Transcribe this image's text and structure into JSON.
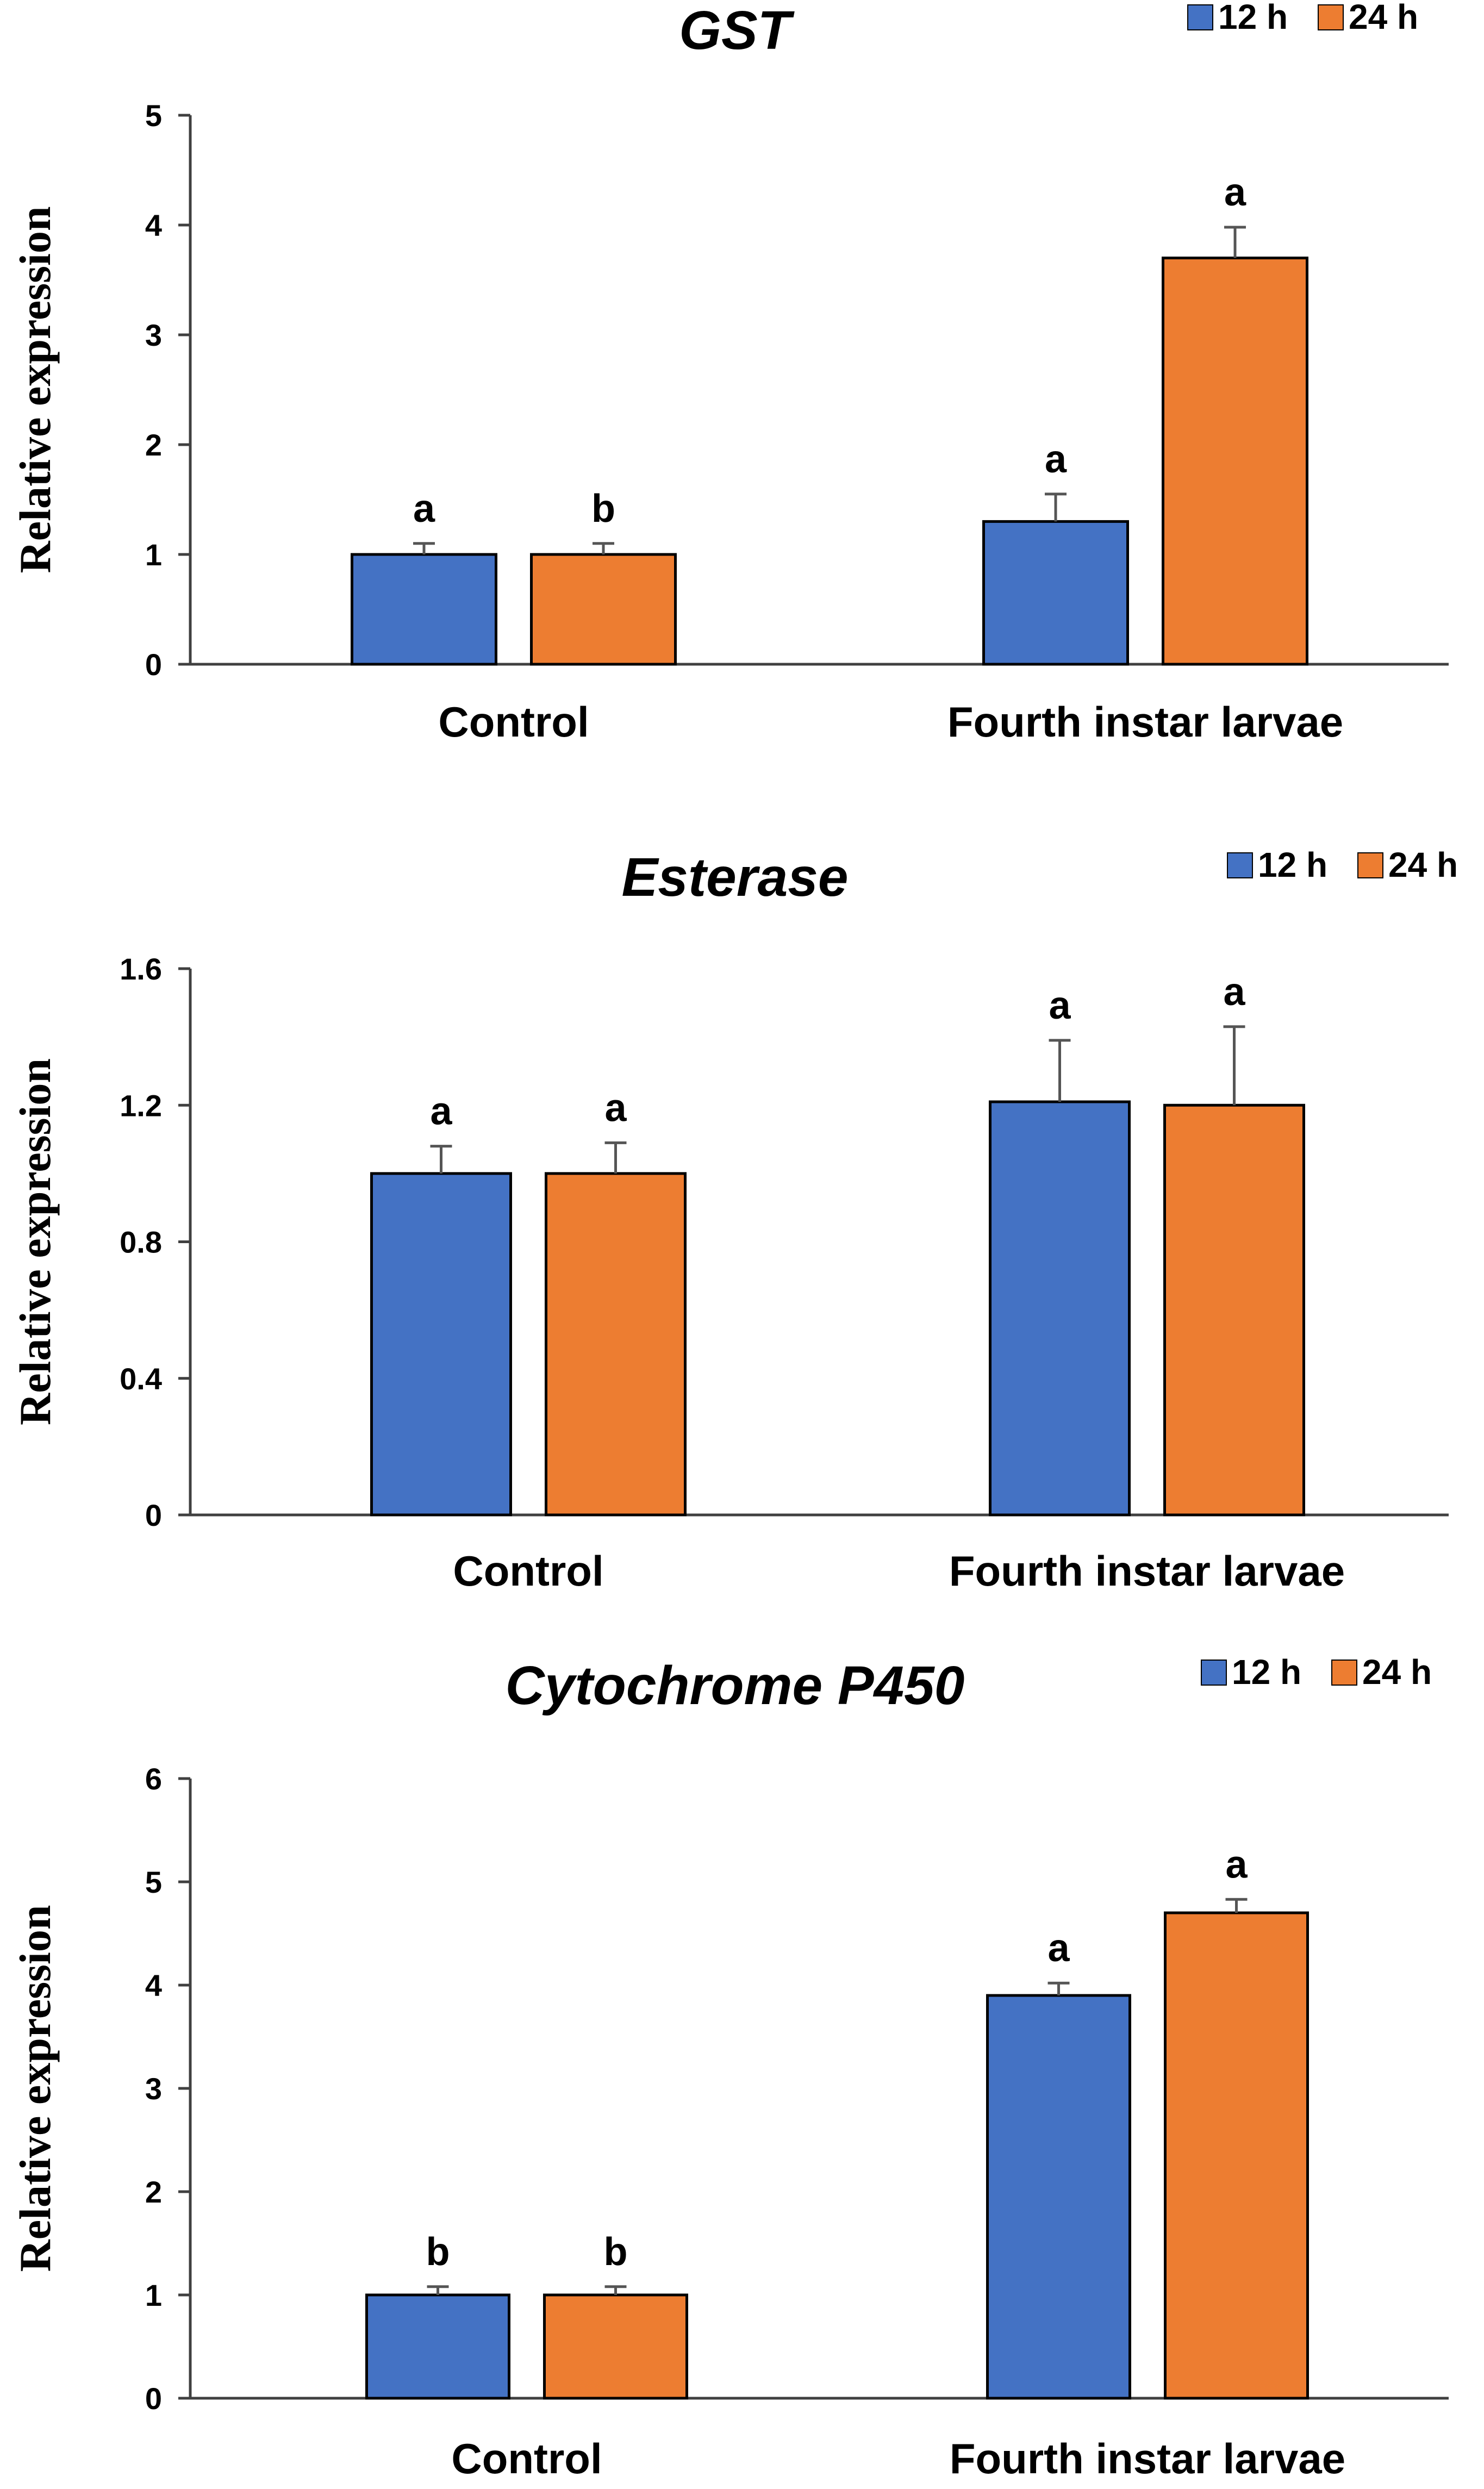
{
  "colors": {
    "series_12h": "#4472c4",
    "series_24h": "#ed7d31",
    "axis": "#404040",
    "errorbar": "#555555"
  },
  "chart_data": [
    {
      "type": "bar",
      "title": "GST",
      "ylabel": "Relative expression",
      "xlabel": "",
      "categories": [
        "Control",
        "Fourth instar larvae"
      ],
      "ylim": [
        0,
        5
      ],
      "yticks": [
        0,
        1,
        2,
        3,
        4,
        5
      ],
      "ytick_labels": [
        "0",
        "1",
        "2",
        "3",
        "4",
        "5"
      ],
      "legend": "top-right",
      "series": [
        {
          "name": "12 h",
          "values": [
            1.0,
            1.3
          ],
          "errors": [
            0.1,
            0.25
          ],
          "labels": [
            "a",
            "a"
          ]
        },
        {
          "name": "24 h",
          "values": [
            1.0,
            3.7
          ],
          "errors": [
            0.1,
            0.28
          ],
          "labels": [
            "b",
            "a"
          ]
        }
      ]
    },
    {
      "type": "bar",
      "title": "Esterase",
      "ylabel": "Relative expression",
      "xlabel": "",
      "categories": [
        "Control",
        "Fourth instar larvae"
      ],
      "ylim": [
        0,
        1.6
      ],
      "yticks": [
        0,
        0.4,
        0.8,
        1.2,
        1.6
      ],
      "ytick_labels": [
        "0",
        "0.4",
        "0.8",
        "1.2",
        "1.6"
      ],
      "legend": "top-right",
      "series": [
        {
          "name": "12 h",
          "values": [
            1.0,
            1.21
          ],
          "errors": [
            0.08,
            0.18
          ],
          "labels": [
            "a",
            "a"
          ]
        },
        {
          "name": "24 h",
          "values": [
            1.0,
            1.2
          ],
          "errors": [
            0.09,
            0.23
          ],
          "labels": [
            "a",
            "a"
          ]
        }
      ]
    },
    {
      "type": "bar",
      "title": "Cytochrome P450",
      "ylabel": "Relative expression",
      "xlabel": "",
      "categories": [
        "Control",
        "Fourth instar larvae"
      ],
      "ylim": [
        0,
        6
      ],
      "yticks": [
        0,
        1,
        2,
        3,
        4,
        5,
        6
      ],
      "ytick_labels": [
        "0",
        "1",
        "2",
        "3",
        "4",
        "5",
        "6"
      ],
      "legend": "top-right",
      "series": [
        {
          "name": "12 h",
          "values": [
            1.0,
            3.9
          ],
          "errors": [
            0.08,
            0.12
          ],
          "labels": [
            "b",
            "a"
          ]
        },
        {
          "name": "24 h",
          "values": [
            1.0,
            4.7
          ],
          "errors": [
            0.08,
            0.13
          ],
          "labels": [
            "b",
            "a"
          ]
        }
      ]
    }
  ]
}
